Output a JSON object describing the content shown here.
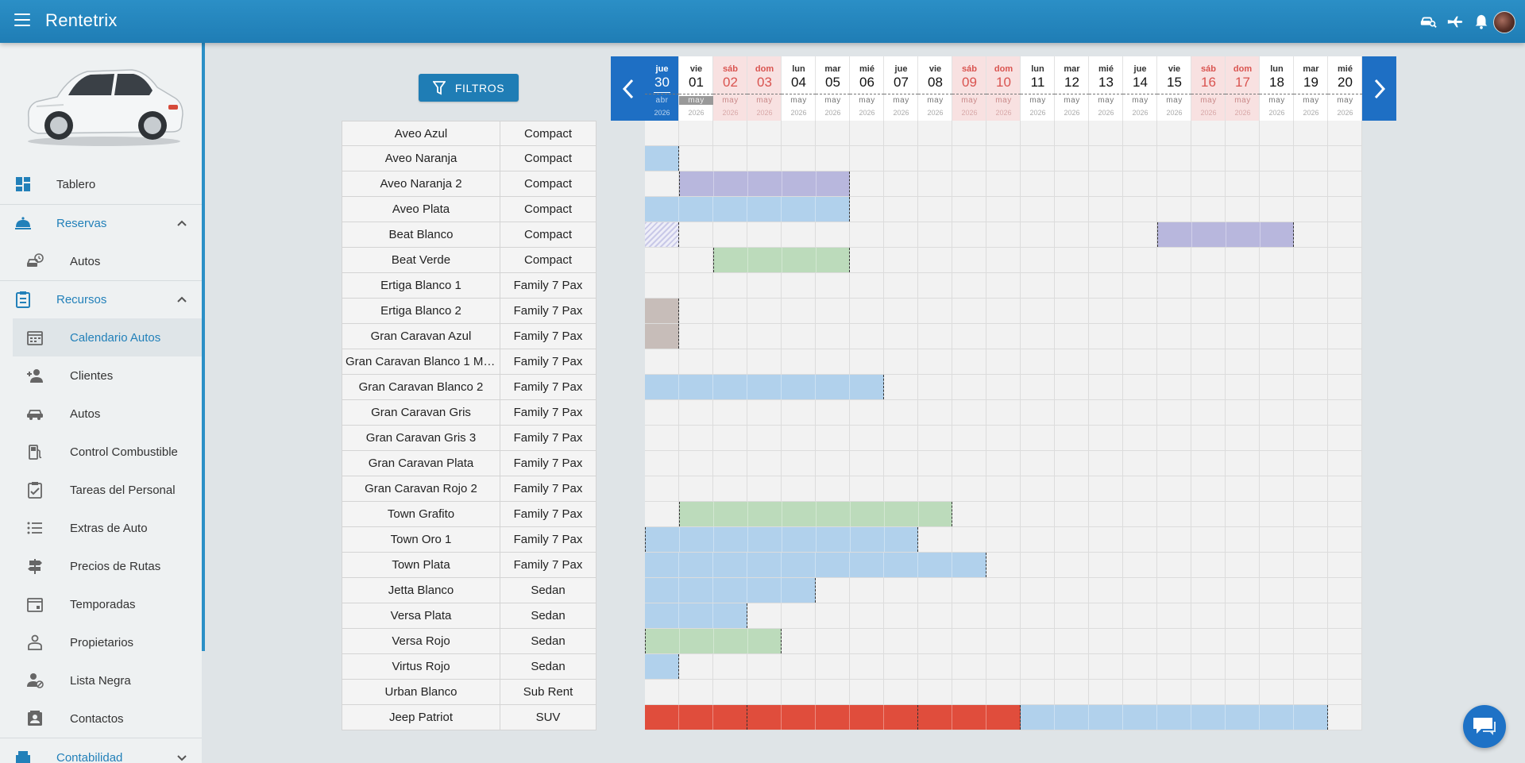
{
  "app": {
    "title": "Rentetrix"
  },
  "topbar_icons": [
    "car-search-icon",
    "plane-icon",
    "bell-icon",
    "avatar"
  ],
  "colors": {
    "primary": "#1f7db5",
    "today": "#1e6fc4",
    "weekend": "#f8e1e1",
    "booking_blue": "#b1d1ec",
    "booking_purple": "#b8b7dd",
    "booking_green": "#bcdbbb",
    "booking_taupe": "#c7bdb9",
    "booking_red": "#e04d3c"
  },
  "sidebar": {
    "items": [
      {
        "label": "Tablero",
        "icon": "dashboard-icon",
        "kind": "top"
      },
      {
        "label": "Reservas",
        "icon": "reservation-bell-icon",
        "kind": "section",
        "expanded": true
      },
      {
        "label": "Autos",
        "icon": "car-clock-icon",
        "kind": "sub"
      },
      {
        "label": "Recursos",
        "icon": "clipboard-icon",
        "kind": "section",
        "expanded": true
      },
      {
        "label": "Calendario Autos",
        "icon": "calendar-icon",
        "kind": "sub",
        "active": true
      },
      {
        "label": "Clientes",
        "icon": "add-person-icon",
        "kind": "sub"
      },
      {
        "label": "Autos",
        "icon": "car-icon",
        "kind": "sub"
      },
      {
        "label": "Control Combustible",
        "icon": "fuel-icon",
        "kind": "sub"
      },
      {
        "label": "Tareas del Personal",
        "icon": "task-clipboard-icon",
        "kind": "sub"
      },
      {
        "label": "Extras de Auto",
        "icon": "list-icon",
        "kind": "sub"
      },
      {
        "label": "Precios de Rutas",
        "icon": "signpost-icon",
        "kind": "sub"
      },
      {
        "label": "Temporadas",
        "icon": "calendar-season-icon",
        "kind": "sub"
      },
      {
        "label": "Propietarios",
        "icon": "owner-icon",
        "kind": "sub"
      },
      {
        "label": "Lista Negra",
        "icon": "blocked-person-icon",
        "kind": "sub"
      },
      {
        "label": "Contactos",
        "icon": "contacts-icon",
        "kind": "sub"
      },
      {
        "label": "Contabilidad",
        "icon": "accounting-icon",
        "kind": "section",
        "expanded": false
      }
    ]
  },
  "filters": {
    "label": "FILTROS"
  },
  "calendar": {
    "days": [
      {
        "name": "jue",
        "num": "30",
        "month": "abr",
        "year": "2026",
        "weekend": false,
        "today": true
      },
      {
        "name": "vie",
        "num": "01",
        "month": "may",
        "year": "2026",
        "weekend": false,
        "grayed": true
      },
      {
        "name": "sáb",
        "num": "02",
        "month": "may",
        "year": "2026",
        "weekend": true
      },
      {
        "name": "dom",
        "num": "03",
        "month": "may",
        "year": "2026",
        "weekend": true
      },
      {
        "name": "lun",
        "num": "04",
        "month": "may",
        "year": "2026",
        "weekend": false
      },
      {
        "name": "mar",
        "num": "05",
        "month": "may",
        "year": "2026",
        "weekend": false
      },
      {
        "name": "mié",
        "num": "06",
        "month": "may",
        "year": "2026",
        "weekend": false
      },
      {
        "name": "jue",
        "num": "07",
        "month": "may",
        "year": "2026",
        "weekend": false
      },
      {
        "name": "vie",
        "num": "08",
        "month": "may",
        "year": "2026",
        "weekend": false
      },
      {
        "name": "sáb",
        "num": "09",
        "month": "may",
        "year": "2026",
        "weekend": true
      },
      {
        "name": "dom",
        "num": "10",
        "month": "may",
        "year": "2026",
        "weekend": true
      },
      {
        "name": "lun",
        "num": "11",
        "month": "may",
        "year": "2026",
        "weekend": false
      },
      {
        "name": "mar",
        "num": "12",
        "month": "may",
        "year": "2026",
        "weekend": false
      },
      {
        "name": "mié",
        "num": "13",
        "month": "may",
        "year": "2026",
        "weekend": false
      },
      {
        "name": "jue",
        "num": "14",
        "month": "may",
        "year": "2026",
        "weekend": false
      },
      {
        "name": "vie",
        "num": "15",
        "month": "may",
        "year": "2026",
        "weekend": false
      },
      {
        "name": "sáb",
        "num": "16",
        "month": "may",
        "year": "2026",
        "weekend": true
      },
      {
        "name": "dom",
        "num": "17",
        "month": "may",
        "year": "2026",
        "weekend": true
      },
      {
        "name": "lun",
        "num": "18",
        "month": "may",
        "year": "2026",
        "weekend": false
      },
      {
        "name": "mar",
        "num": "19",
        "month": "may",
        "year": "2026",
        "weekend": false
      },
      {
        "name": "mié",
        "num": "20",
        "month": "may",
        "year": "2026",
        "weekend": false
      }
    ],
    "cars": [
      {
        "name": "Aveo Azul",
        "category": "Compact"
      },
      {
        "name": "Aveo Naranja",
        "category": "Compact"
      },
      {
        "name": "Aveo Naranja 2",
        "category": "Compact"
      },
      {
        "name": "Aveo Plata",
        "category": "Compact"
      },
      {
        "name": "Beat Blanco",
        "category": "Compact"
      },
      {
        "name": "Beat Verde",
        "category": "Compact"
      },
      {
        "name": "Ertiga Blanco 1",
        "category": "Family 7 Pax"
      },
      {
        "name": "Ertiga Blanco 2",
        "category": "Family 7 Pax"
      },
      {
        "name": "Gran Caravan Azul",
        "category": "Family 7 Pax"
      },
      {
        "name": "Gran Caravan Blanco 1 MT...",
        "category": "Family 7 Pax"
      },
      {
        "name": "Gran Caravan Blanco 2",
        "category": "Family 7 Pax"
      },
      {
        "name": "Gran Caravan Gris",
        "category": "Family 7 Pax"
      },
      {
        "name": "Gran Caravan Gris 3",
        "category": "Family 7 Pax"
      },
      {
        "name": "Gran Caravan Plata",
        "category": "Family 7 Pax"
      },
      {
        "name": "Gran Caravan Rojo 2",
        "category": "Family 7 Pax"
      },
      {
        "name": "Town Grafito",
        "category": "Family 7 Pax"
      },
      {
        "name": "Town Oro 1",
        "category": "Family 7 Pax"
      },
      {
        "name": "Town Plata",
        "category": "Family 7 Pax"
      },
      {
        "name": "Jetta Blanco",
        "category": "Sedan"
      },
      {
        "name": "Versa Plata",
        "category": "Sedan"
      },
      {
        "name": "Versa Rojo",
        "category": "Sedan"
      },
      {
        "name": "Virtus Rojo",
        "category": "Sedan"
      },
      {
        "name": "Urban Blanco",
        "category": "Sub Rent"
      },
      {
        "name": "Jeep Patriot",
        "category": "SUV"
      }
    ],
    "bookings": [
      {
        "row": 1,
        "start": 0,
        "days": 1,
        "color": "blue"
      },
      {
        "row": 2,
        "start": 1,
        "days": 5,
        "color": "purple",
        "left_dash": true
      },
      {
        "row": 3,
        "start": 0,
        "days": 6,
        "color": "blue"
      },
      {
        "row": 4,
        "start": 0,
        "days": 1,
        "color": "hatch"
      },
      {
        "row": 4,
        "start": 15,
        "days": 4,
        "color": "purple",
        "left_dash": true
      },
      {
        "row": 5,
        "start": 2,
        "days": 4,
        "color": "green",
        "left_dash": true
      },
      {
        "row": 7,
        "start": 0,
        "days": 1,
        "color": "taupe"
      },
      {
        "row": 8,
        "start": 0,
        "days": 1,
        "color": "taupe"
      },
      {
        "row": 10,
        "start": 0,
        "days": 7,
        "color": "blue"
      },
      {
        "row": 15,
        "start": 1,
        "days": 8,
        "color": "green",
        "left_dash": true
      },
      {
        "row": 16,
        "start": 0,
        "days": 8,
        "color": "blue",
        "left_dash": true
      },
      {
        "row": 17,
        "start": 0,
        "days": 10,
        "color": "blue"
      },
      {
        "row": 18,
        "start": 0,
        "days": 5,
        "color": "blue"
      },
      {
        "row": 19,
        "start": 0,
        "days": 3,
        "color": "blue"
      },
      {
        "row": 20,
        "start": 0,
        "days": 4,
        "color": "green",
        "left_dash": true
      },
      {
        "row": 21,
        "start": 0,
        "days": 1,
        "color": "blue"
      },
      {
        "row": 23,
        "start": 0,
        "days": 3,
        "color": "red"
      },
      {
        "row": 23,
        "start": 3,
        "days": 5,
        "color": "red",
        "no_right_dash": false
      },
      {
        "row": 23,
        "start": 8,
        "days": 3,
        "color": "red"
      },
      {
        "row": 23,
        "start": 11,
        "days": 9,
        "color": "blue"
      }
    ]
  }
}
